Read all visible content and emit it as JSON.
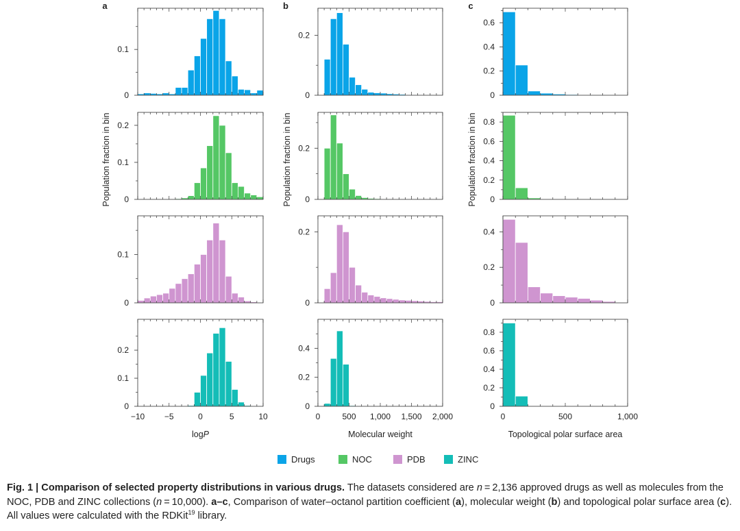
{
  "chart_data": {
    "type": "bar",
    "layout": "grid-4-rows-3-cols",
    "colors": {
      "Drugs": "#0aa4e8",
      "NOC": "#55c765",
      "PDB": "#cf95d0",
      "ZINC": "#14bdb7"
    },
    "legend": [
      "Drugs",
      "NOC",
      "PDB",
      "ZINC"
    ],
    "panels": [
      {
        "label": "a",
        "xlabel_main": "log",
        "xlabel_italic": "P",
        "ylabel": "Population fraction in bin",
        "xlim": [
          -10,
          10
        ],
        "xticks": [
          -10,
          -5,
          0,
          5,
          10
        ],
        "xtick_labels": [
          "−10",
          "−5",
          "0",
          "5",
          "10"
        ],
        "bin_start": -10,
        "bin_width": 1,
        "rows": [
          {
            "dataset": "Drugs",
            "ylim": [
              0,
              0.19
            ],
            "yticks": [
              0,
              0.1
            ],
            "ytick_labels": [
              "0",
              "0.1"
            ],
            "values": [
              0.003,
              0.005,
              0.004,
              0.003,
              0.005,
              0.003,
              0.017,
              0.017,
              0.055,
              0.086,
              0.124,
              0.167,
              0.185,
              0.167,
              0.075,
              0.042,
              0.013,
              0.012,
              0.005,
              0.011
            ]
          },
          {
            "dataset": "NOC",
            "ylim": [
              0,
              0.235
            ],
            "yticks": [
              0,
              0.1,
              0.2
            ],
            "ytick_labels": [
              "0",
              "0.1",
              "0.2"
            ],
            "values": [
              0,
              0,
              0,
              0,
              0.001,
              0.001,
              0.002,
              0.004,
              0.01,
              0.045,
              0.085,
              0.145,
              0.226,
              0.2,
              0.126,
              0.045,
              0.035,
              0.017,
              0.012,
              0.007
            ]
          },
          {
            "dataset": "PDB",
            "ylim": [
              0,
              0.18
            ],
            "yticks": [
              0,
              0.1
            ],
            "ytick_labels": [
              "0",
              "0.1"
            ],
            "values": [
              0.005,
              0.01,
              0.014,
              0.017,
              0.02,
              0.03,
              0.04,
              0.05,
              0.06,
              0.08,
              0.1,
              0.13,
              0.165,
              0.13,
              0.055,
              0.02,
              0.012,
              0.004,
              0.002,
              0.001
            ]
          },
          {
            "dataset": "ZINC",
            "ylim": [
              0,
              0.31
            ],
            "yticks": [
              0,
              0.1,
              0.2
            ],
            "ytick_labels": [
              "0",
              "0.1",
              "0.2"
            ],
            "values": [
              0,
              0,
              0,
              0,
              0,
              0,
              0,
              0,
              0.003,
              0.05,
              0.11,
              0.19,
              0.26,
              0.28,
              0.16,
              0.06,
              0.015,
              0.003,
              0.001,
              0
            ]
          }
        ]
      },
      {
        "label": "b",
        "xlabel_main": "Molecular weight",
        "xlabel_italic": "",
        "ylabel": "Population fraction in bin",
        "xlim": [
          0,
          2000
        ],
        "xticks": [
          0,
          500,
          1000,
          1500,
          2000
        ],
        "xtick_labels": [
          "0",
          "500",
          "1,000",
          "1,500",
          "2,000"
        ],
        "bin_start": 100,
        "bin_width": 100,
        "rows": [
          {
            "dataset": "Drugs",
            "ylim": [
              0,
              0.29
            ],
            "yticks": [
              0,
              0.2
            ],
            "ytick_labels": [
              "0",
              "0.2"
            ],
            "values": [
              0.12,
              0.255,
              0.275,
              0.17,
              0.06,
              0.035,
              0.02,
              0.01,
              0.008,
              0.007,
              0.005,
              0.004,
              0.003,
              0.002,
              0.002,
              0.001,
              0.001,
              0.001,
              0.001
            ]
          },
          {
            "dataset": "NOC",
            "ylim": [
              0,
              0.34
            ],
            "yticks": [
              0,
              0.2
            ],
            "ytick_labels": [
              "0",
              "0.2"
            ],
            "values": [
              0.2,
              0.33,
              0.22,
              0.1,
              0.04,
              0.015,
              0.007,
              0.004,
              0.003,
              0.002,
              0.002,
              0.001,
              0.001,
              0.001,
              0,
              0,
              0,
              0,
              0
            ]
          },
          {
            "dataset": "PDB",
            "ylim": [
              0,
              0.245
            ],
            "yticks": [
              0,
              0.2
            ],
            "ytick_labels": [
              "0",
              "0.2"
            ],
            "values": [
              0.04,
              0.085,
              0.22,
              0.2,
              0.1,
              0.05,
              0.03,
              0.022,
              0.018,
              0.014,
              0.012,
              0.01,
              0.008,
              0.007,
              0.006,
              0.005,
              0.004,
              0.003,
              0.003
            ]
          },
          {
            "dataset": "ZINC",
            "ylim": [
              0,
              0.6
            ],
            "yticks": [
              0,
              0.2,
              0.4
            ],
            "ytick_labels": [
              "0",
              "0.2",
              "0.4"
            ],
            "values": [
              0.02,
              0.33,
              0.52,
              0.29,
              0.005,
              0,
              0,
              0,
              0,
              0,
              0,
              0,
              0,
              0,
              0,
              0,
              0,
              0,
              0
            ]
          }
        ]
      },
      {
        "label": "c",
        "xlabel_main": "Topological polar surface area",
        "xlabel_italic": "",
        "ylabel": "Population fraction in bin",
        "xlim": [
          0,
          1000
        ],
        "xticks": [
          0,
          500,
          1000
        ],
        "xtick_labels": [
          "0",
          "500",
          "1,000"
        ],
        "bin_start": 0,
        "bin_width": 100,
        "rows": [
          {
            "dataset": "Drugs",
            "ylim": [
              0,
              0.72
            ],
            "yticks": [
              0,
              0.2,
              0.4,
              0.6
            ],
            "ytick_labels": [
              "0",
              "0.2",
              "0.4",
              "0.6"
            ],
            "values": [
              0.69,
              0.25,
              0.035,
              0.017,
              0.01,
              0.006,
              0.004,
              0.003,
              0.002,
              0.001
            ]
          },
          {
            "dataset": "NOC",
            "ylim": [
              0,
              0.9
            ],
            "yticks": [
              0,
              0.2,
              0.4,
              0.6,
              0.8
            ],
            "ytick_labels": [
              "0",
              "0.2",
              "0.4",
              "0.6",
              "0.8"
            ],
            "values": [
              0.87,
              0.12,
              0.015,
              0.005,
              0.003,
              0.002,
              0.001,
              0.001,
              0,
              0
            ]
          },
          {
            "dataset": "PDB",
            "ylim": [
              0,
              0.49
            ],
            "yticks": [
              0,
              0.2,
              0.4
            ],
            "ytick_labels": [
              "0",
              "0.2",
              "0.4"
            ],
            "values": [
              0.47,
              0.34,
              0.09,
              0.055,
              0.04,
              0.032,
              0.025,
              0.015,
              0.008,
              0.003
            ]
          },
          {
            "dataset": "ZINC",
            "ylim": [
              0,
              0.94
            ],
            "yticks": [
              0,
              0.2,
              0.4,
              0.6,
              0.8
            ],
            "ytick_labels": [
              "0",
              "0.2",
              "0.4",
              "0.6",
              "0.8"
            ],
            "values": [
              0.9,
              0.11,
              0,
              0,
              0,
              0,
              0,
              0,
              0,
              0
            ]
          }
        ]
      }
    ]
  },
  "caption": {
    "label": "Fig. 1 | Comparison of selected property distributions in various drugs.",
    "text_1": " The datasets considered are ",
    "n1_var": "n",
    "n1_val": " = 2,136",
    "text_2": " approved drugs as well as molecules from the NOC, PDB and ZINC collections (",
    "n2_var": "n",
    "n2_val": " = 10,000",
    "text_3": "). ",
    "range_label": "a–c",
    "text_4": ", Comparison of water–octanol partition coefficient (",
    "a": "a",
    "text_5": "), molecular weight (",
    "b": "b",
    "text_6": ") and topological polar surface area (",
    "c": "c",
    "text_7": "). All values were calculated with the RDKit",
    "ref": "19",
    "text_8": " library."
  }
}
